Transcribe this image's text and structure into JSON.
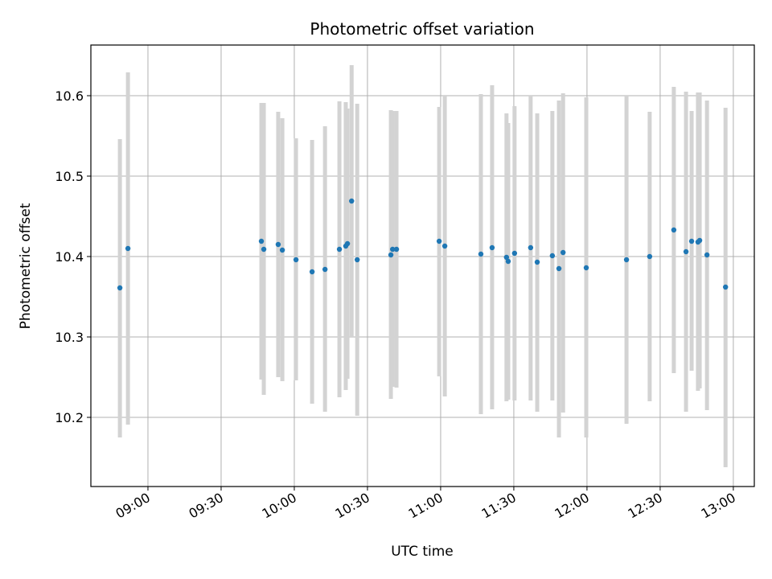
{
  "chart_data": {
    "type": "scatter",
    "title": "Photometric offset variation",
    "xlabel": "UTC time",
    "ylabel": "Photometric offset",
    "x_ticks": [
      "09:00",
      "09:30",
      "10:00",
      "10:30",
      "11:00",
      "11:30",
      "12:00",
      "12:30",
      "13:00"
    ],
    "x_tick_values": [
      540,
      570,
      600,
      630,
      660,
      690,
      720,
      750,
      780
    ],
    "x_unit": "minutes after 00:00 UTC",
    "xlim": [
      516.6,
      788.6
    ],
    "y_ticks": [
      "10.2",
      "10.3",
      "10.4",
      "10.5",
      "10.6"
    ],
    "y_tick_values": [
      10.2,
      10.3,
      10.4,
      10.5,
      10.6
    ],
    "ylim": [
      10.114,
      10.663
    ],
    "grid": true,
    "colors": {
      "point": "#1f77b4",
      "errorbar": "#d3d3d3",
      "grid": "#b0b0b0"
    },
    "points": [
      {
        "x": 528.5,
        "y": 10.361,
        "lo": 10.175,
        "hi": 10.546
      },
      {
        "x": 531.8,
        "y": 10.41,
        "lo": 10.191,
        "hi": 10.629
      },
      {
        "x": 586.5,
        "y": 10.419,
        "lo": 10.247,
        "hi": 10.591
      },
      {
        "x": 587.5,
        "y": 10.409,
        "lo": 10.228,
        "hi": 10.591
      },
      {
        "x": 593.4,
        "y": 10.415,
        "lo": 10.25,
        "hi": 10.58
      },
      {
        "x": 595.1,
        "y": 10.408,
        "lo": 10.245,
        "hi": 10.572
      },
      {
        "x": 600.7,
        "y": 10.396,
        "lo": 10.246,
        "hi": 10.547
      },
      {
        "x": 607.3,
        "y": 10.381,
        "lo": 10.217,
        "hi": 10.545
      },
      {
        "x": 612.6,
        "y": 10.384,
        "lo": 10.207,
        "hi": 10.562
      },
      {
        "x": 618.5,
        "y": 10.409,
        "lo": 10.225,
        "hi": 10.593
      },
      {
        "x": 621.1,
        "y": 10.413,
        "lo": 10.234,
        "hi": 10.592
      },
      {
        "x": 621.8,
        "y": 10.416,
        "lo": 10.248,
        "hi": 10.584
      },
      {
        "x": 623.5,
        "y": 10.469,
        "lo": 10.3,
        "hi": 10.638
      },
      {
        "x": 625.8,
        "y": 10.396,
        "lo": 10.202,
        "hi": 10.59
      },
      {
        "x": 639.6,
        "y": 10.402,
        "lo": 10.223,
        "hi": 10.582
      },
      {
        "x": 640.3,
        "y": 10.409,
        "lo": 10.238,
        "hi": 10.581
      },
      {
        "x": 641.9,
        "y": 10.409,
        "lo": 10.237,
        "hi": 10.581
      },
      {
        "x": 659.4,
        "y": 10.419,
        "lo": 10.251,
        "hi": 10.586
      },
      {
        "x": 661.7,
        "y": 10.413,
        "lo": 10.226,
        "hi": 10.6
      },
      {
        "x": 676.5,
        "y": 10.403,
        "lo": 10.204,
        "hi": 10.602
      },
      {
        "x": 681.1,
        "y": 10.411,
        "lo": 10.21,
        "hi": 10.613
      },
      {
        "x": 687.0,
        "y": 10.399,
        "lo": 10.22,
        "hi": 10.578
      },
      {
        "x": 687.7,
        "y": 10.394,
        "lo": 10.222,
        "hi": 10.566
      },
      {
        "x": 690.3,
        "y": 10.404,
        "lo": 10.221,
        "hi": 10.587
      },
      {
        "x": 696.9,
        "y": 10.411,
        "lo": 10.221,
        "hi": 10.6
      },
      {
        "x": 699.6,
        "y": 10.393,
        "lo": 10.207,
        "hi": 10.578
      },
      {
        "x": 705.8,
        "y": 10.401,
        "lo": 10.221,
        "hi": 10.581
      },
      {
        "x": 708.5,
        "y": 10.385,
        "lo": 10.175,
        "hi": 10.594
      },
      {
        "x": 710.2,
        "y": 10.405,
        "lo": 10.206,
        "hi": 10.603
      },
      {
        "x": 719.7,
        "y": 10.386,
        "lo": 10.175,
        "hi": 10.598
      },
      {
        "x": 736.2,
        "y": 10.396,
        "lo": 10.192,
        "hi": 10.6
      },
      {
        "x": 745.7,
        "y": 10.4,
        "lo": 10.22,
        "hi": 10.58
      },
      {
        "x": 755.6,
        "y": 10.433,
        "lo": 10.255,
        "hi": 10.611
      },
      {
        "x": 760.6,
        "y": 10.406,
        "lo": 10.207,
        "hi": 10.605
      },
      {
        "x": 762.9,
        "y": 10.419,
        "lo": 10.258,
        "hi": 10.581
      },
      {
        "x": 765.5,
        "y": 10.418,
        "lo": 10.233,
        "hi": 10.604
      },
      {
        "x": 766.2,
        "y": 10.42,
        "lo": 10.236,
        "hi": 10.604
      },
      {
        "x": 769.2,
        "y": 10.402,
        "lo": 10.209,
        "hi": 10.594
      },
      {
        "x": 776.8,
        "y": 10.362,
        "lo": 10.138,
        "hi": 10.585
      }
    ]
  }
}
